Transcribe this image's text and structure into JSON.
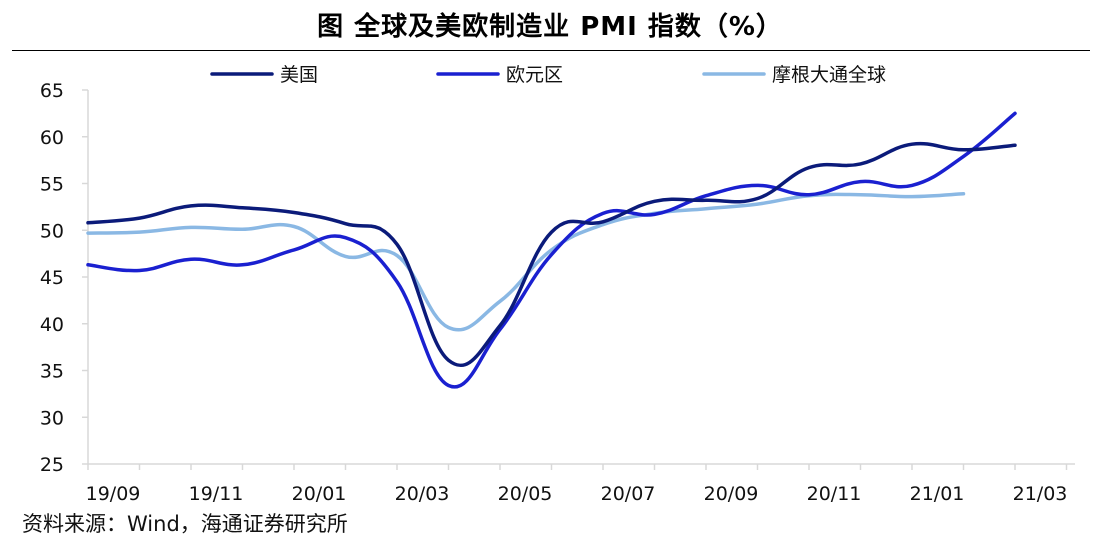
{
  "title": "图  全球及美欧制造业 PMI 指数（%）",
  "source": "资料来源：Wind，海通证券研究所",
  "colors": {
    "us": "#0b1b7a",
    "eurozone": "#1a20d0",
    "global": "#8ab8e4",
    "axis": "#d8d8d8"
  },
  "chart_data": {
    "type": "line",
    "title": "全球及美欧制造业 PMI 指数（%）",
    "xlabel": "",
    "ylabel": "",
    "ylim": [
      25,
      65
    ],
    "yticks": [
      25,
      30,
      35,
      40,
      45,
      50,
      55,
      60,
      65
    ],
    "x_tick_labels": [
      "19/09",
      "19/11",
      "20/01",
      "20/03",
      "20/05",
      "20/07",
      "20/09",
      "20/11",
      "21/01",
      "21/03"
    ],
    "categories": [
      "19/09",
      "19/10",
      "19/11",
      "19/12",
      "20/01",
      "20/02",
      "20/03",
      "20/04",
      "20/05",
      "20/06",
      "20/07",
      "20/08",
      "20/09",
      "20/10",
      "20/11",
      "20/12",
      "21/01",
      "21/02",
      "21/03"
    ],
    "legend_position": "top",
    "grid": false,
    "series": [
      {
        "name": "美国",
        "color": "#0b1b7a",
        "values": [
          50.8,
          51.3,
          52.6,
          52.4,
          51.9,
          50.7,
          48.5,
          36.1,
          39.8,
          49.8,
          50.9,
          53.1,
          53.2,
          53.4,
          56.7,
          57.1,
          59.2,
          58.6,
          59.1
        ]
      },
      {
        "name": "欧元区",
        "color": "#1a20d0",
        "values": [
          46.3,
          45.7,
          46.9,
          46.3,
          47.9,
          49.2,
          44.5,
          33.4,
          39.4,
          47.4,
          51.8,
          51.7,
          53.7,
          54.8,
          53.8,
          55.2,
          54.8,
          57.9,
          62.5
        ]
      },
      {
        "name": "摩根大通全球",
        "color": "#8ab8e4",
        "values": [
          49.7,
          49.8,
          50.3,
          50.1,
          50.4,
          47.2,
          47.3,
          39.6,
          42.4,
          47.9,
          50.6,
          51.8,
          52.3,
          52.8,
          53.7,
          53.8,
          53.6,
          53.9,
          null
        ]
      }
    ]
  }
}
